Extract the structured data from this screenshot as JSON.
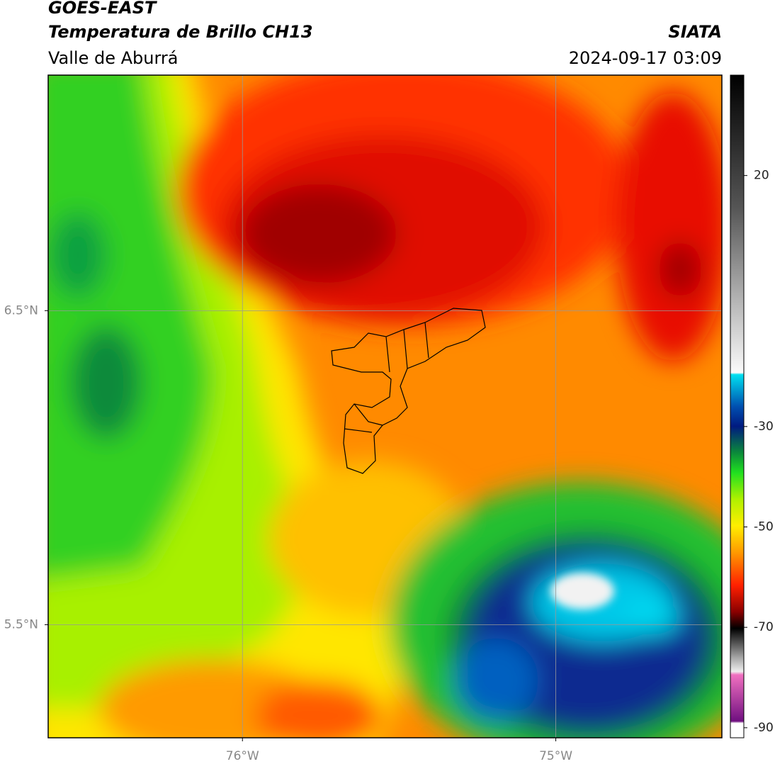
{
  "header": {
    "title": "GOES-EAST",
    "subtitle": "Temperatura de Brillo CH13",
    "region": "Valle de Aburrá",
    "source": "SIATA",
    "datetime": "2024-09-17 03:09"
  },
  "map": {
    "xlim": [
      -76.62,
      -74.47
    ],
    "ylim": [
      5.14,
      7.25
    ],
    "xticks": [
      {
        "value": -76,
        "label": "76°W"
      },
      {
        "value": -75,
        "label": "75°W"
      }
    ],
    "yticks": [
      {
        "value": 6.5,
        "label": "6.5°N"
      },
      {
        "value": 5.5,
        "label": "5.5°N"
      }
    ],
    "grid": true
  },
  "colorbar": {
    "lim": [
      -92,
      40
    ],
    "ticks": [
      20,
      -30,
      -50,
      -70,
      -90
    ]
  }
}
